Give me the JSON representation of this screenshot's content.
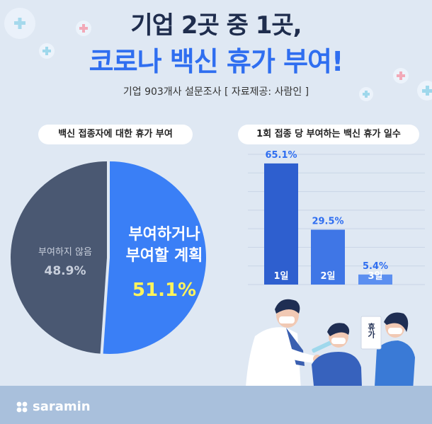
{
  "header": {
    "title_line1": "기업 2곳 중 1곳,",
    "title_line2": "코로나 백신 휴가 부여!",
    "source": "기업 903개사 설문조사 [ 자료제공: 사람인 ]"
  },
  "brand": {
    "logo_text": "saramin"
  },
  "illustration": {
    "sign_text": "휴가"
  },
  "colors": {
    "title_blue": "#2f6ef0",
    "pie_blue": "#3a7ff6",
    "pie_dark": "#4a5872",
    "bar_dark": "#2e5fcf",
    "bar_mid": "#3f76e6",
    "bar_light": "#5c8ff0",
    "highlight_yellow": "#fff45c"
  },
  "chart_data": [
    {
      "type": "pie",
      "title": "백신 접종자에 대한 휴가 부여",
      "slices": [
        {
          "label_line1": "부여하거나",
          "label_line2": "부여할 계획",
          "value": 51.1,
          "value_label": "51.1%"
        },
        {
          "label": "부여하지 않음",
          "value": 48.9,
          "value_label": "48.9%"
        }
      ]
    },
    {
      "type": "bar",
      "title": "1회 접종 당 부여하는 백신 휴가 일수",
      "categories": [
        "1일",
        "2일",
        "3일"
      ],
      "values": [
        65.1,
        29.5,
        5.4
      ],
      "value_labels": [
        "65.1%",
        "29.5%",
        "5.4%"
      ],
      "ylim": [
        0,
        70
      ]
    }
  ]
}
